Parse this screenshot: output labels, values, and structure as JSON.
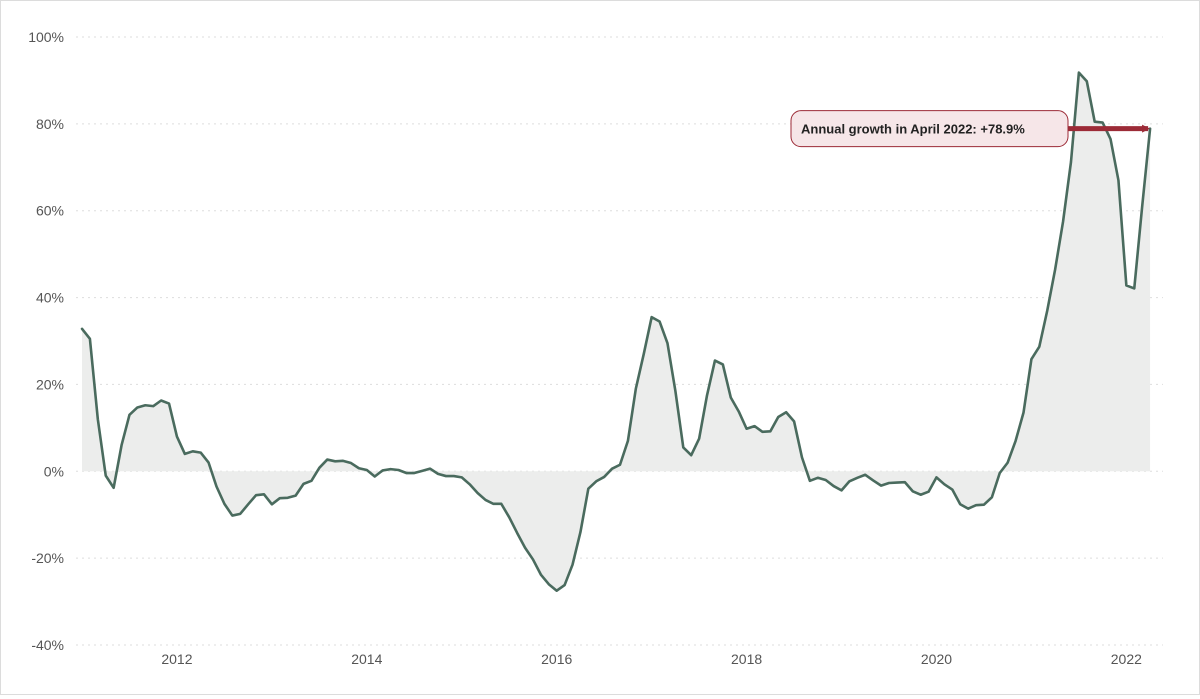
{
  "chart_data": {
    "type": "area",
    "title": "",
    "xlabel": "",
    "ylabel": "",
    "x_ticks": [
      "2012",
      "2014",
      "2016",
      "2018",
      "2020",
      "2022"
    ],
    "y_ticks": [
      "100%",
      "80%",
      "60%",
      "40%",
      "20%",
      "0%",
      "-20%",
      "-40%"
    ],
    "xlim": [
      "2011-01",
      "2022-05"
    ],
    "ylim": [
      -40,
      100
    ],
    "grid": "horizontal dotted",
    "legend": "none",
    "colors": {
      "line": "#4a6b5e",
      "fill": "#ecedec",
      "arrow": "#9c2b37",
      "callout_fill": "#f6e6e8",
      "callout_border": "#9c2b37"
    },
    "annotation": {
      "text": "Annual growth in April 2022: +78.9%",
      "x": "2022-04",
      "y": 78.9
    },
    "series": [
      {
        "x": [
          "2011-01",
          "2011-02",
          "2011-03",
          "2011-04",
          "2011-05",
          "2011-06",
          "2011-07",
          "2011-08",
          "2011-09",
          "2011-10",
          "2011-11",
          "2011-12",
          "2012-01",
          "2012-02",
          "2012-03",
          "2012-04",
          "2012-05",
          "2012-06",
          "2012-07",
          "2012-08",
          "2012-09",
          "2012-10",
          "2012-11",
          "2012-12",
          "2013-01",
          "2013-02",
          "2013-03",
          "2013-04",
          "2013-05",
          "2013-06",
          "2013-07",
          "2013-08",
          "2013-09",
          "2013-10",
          "2013-11",
          "2013-12",
          "2014-01",
          "2014-02",
          "2014-03",
          "2014-04",
          "2014-05",
          "2014-06",
          "2014-07",
          "2014-08",
          "2014-09",
          "2014-10",
          "2014-11",
          "2014-12",
          "2015-01",
          "2015-02",
          "2015-03",
          "2015-04",
          "2015-05",
          "2015-06",
          "2015-07",
          "2015-08",
          "2015-09",
          "2015-10",
          "2015-11",
          "2015-12",
          "2016-01",
          "2016-02",
          "2016-03",
          "2016-04",
          "2016-05",
          "2016-06",
          "2016-07",
          "2016-08",
          "2016-09",
          "2016-10",
          "2016-11",
          "2016-12",
          "2017-01",
          "2017-02",
          "2017-03",
          "2017-04",
          "2017-05",
          "2017-06",
          "2017-07",
          "2017-08",
          "2017-09",
          "2017-10",
          "2017-11",
          "2017-12",
          "2018-01",
          "2018-02",
          "2018-03",
          "2018-04",
          "2018-05",
          "2018-06",
          "2018-07",
          "2018-08",
          "2018-09",
          "2018-10",
          "2018-11",
          "2018-12",
          "2019-01",
          "2019-02",
          "2019-03",
          "2019-04",
          "2019-05",
          "2019-06",
          "2019-07",
          "2019-08",
          "2019-09",
          "2019-10",
          "2019-11",
          "2019-12",
          "2020-01",
          "2020-02",
          "2020-03",
          "2020-04",
          "2020-05",
          "2020-06",
          "2020-07",
          "2020-08",
          "2020-09",
          "2020-10",
          "2020-11",
          "2020-12",
          "2021-01",
          "2021-02",
          "2021-03",
          "2021-04",
          "2021-05",
          "2021-06",
          "2021-07",
          "2021-08",
          "2021-09",
          "2021-10",
          "2021-11",
          "2021-12",
          "2022-01",
          "2022-02",
          "2022-03",
          "2022-04"
        ],
        "values": [
          32.8,
          30.5,
          12.0,
          -1.0,
          -3.8,
          6.0,
          13.0,
          14.7,
          15.2,
          15.0,
          16.3,
          15.6,
          8.0,
          4.0,
          4.6,
          4.3,
          2.0,
          -3.5,
          -7.5,
          -10.2,
          -9.8,
          -7.6,
          -5.5,
          -5.3,
          -7.6,
          -6.2,
          -6.1,
          -5.6,
          -2.9,
          -2.2,
          0.8,
          2.7,
          2.3,
          2.4,
          1.9,
          0.7,
          0.3,
          -1.2,
          0.2,
          0.5,
          0.3,
          -0.4,
          -0.4,
          0.1,
          0.6,
          -0.6,
          -1.1,
          -1.1,
          -1.4,
          -3.0,
          -5.0,
          -6.6,
          -7.5,
          -7.5,
          -10.6,
          -14.2,
          -17.6,
          -20.3,
          -23.8,
          -26.0,
          -27.5,
          -26.2,
          -21.5,
          -14.0,
          -4.0,
          -2.3,
          -1.3,
          0.6,
          1.5,
          7.0,
          19.0,
          27.0,
          35.5,
          34.5,
          29.5,
          18.5,
          5.5,
          3.7,
          7.5,
          17.5,
          25.5,
          24.6,
          17.0,
          13.8,
          9.8,
          10.4,
          9.1,
          9.2,
          12.5,
          13.6,
          11.5,
          3.2,
          -2.2,
          -1.5,
          -2.0,
          -3.4,
          -4.4,
          -2.3,
          -1.5,
          -0.8,
          -2.1,
          -3.3,
          -2.7,
          -2.6,
          -2.5,
          -4.6,
          -5.4,
          -4.7,
          -1.4,
          -3.0,
          -4.2,
          -7.6,
          -8.6,
          -7.8,
          -7.7,
          -6.0,
          -0.4,
          2.0,
          7.0,
          13.5,
          25.8,
          28.7,
          37.0,
          46.5,
          57.5,
          71.2,
          91.8,
          89.8,
          80.5,
          80.3,
          76.5,
          67.0,
          42.8,
          42.1,
          61.0,
          78.9
        ]
      }
    ]
  }
}
